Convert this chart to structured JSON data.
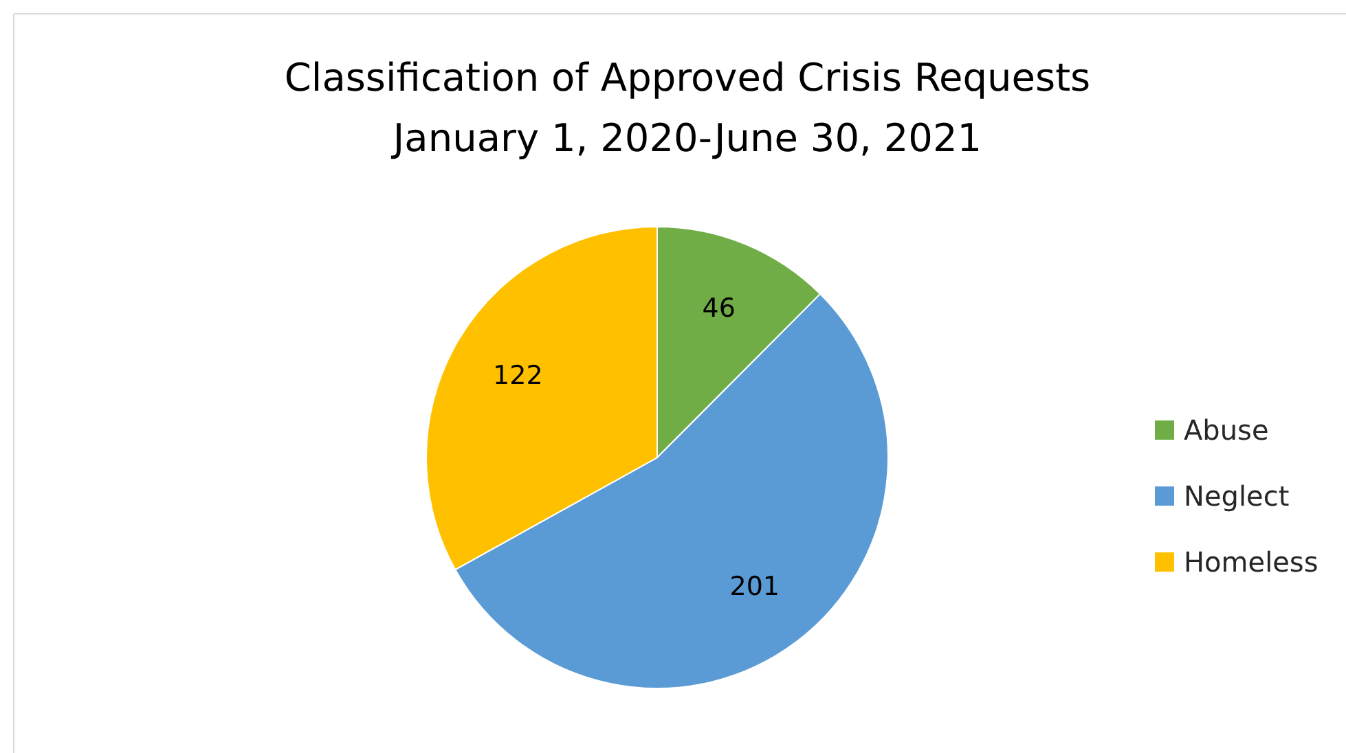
{
  "chart_data": {
    "type": "pie",
    "title": "Classification of Approved Crisis Requests",
    "subtitle": "January 1, 2020-June 30, 2021",
    "categories": [
      "Abuse",
      "Neglect",
      "Homeless"
    ],
    "values": [
      46,
      201,
      122
    ],
    "colors": [
      "#70ad47",
      "#5b9bd5",
      "#ffc000"
    ],
    "data_labels": true,
    "legend": "right"
  }
}
